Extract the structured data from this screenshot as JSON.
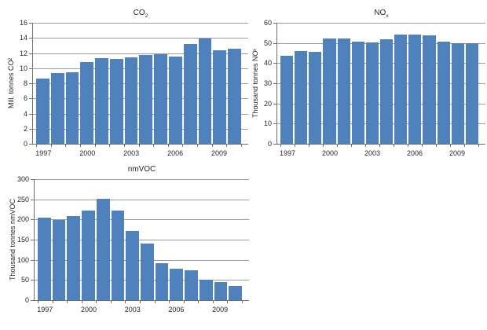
{
  "style": {
    "bar_color": "#4f81bd",
    "gridline_color": "#9c9c9c",
    "axis_color": "#6e6e6e",
    "text_color": "#262626",
    "background": "#ffffff"
  },
  "chart_data": [
    {
      "id": "co2",
      "type": "bar",
      "title_main": "CO",
      "title_sub": "2",
      "ylabel_main": "Mill. tonnes CO",
      "ylabel_sub": "2",
      "categories": [
        1997,
        1998,
        1999,
        2000,
        2001,
        2002,
        2003,
        2004,
        2005,
        2006,
        2007,
        2008,
        2009,
        2010
      ],
      "values": [
        8.6,
        9.4,
        9.5,
        10.8,
        11.3,
        11.2,
        11.4,
        11.7,
        11.8,
        11.5,
        13.2,
        13.9,
        12.4,
        12.6
      ],
      "ylim": [
        0,
        16
      ],
      "y_ticks": [
        0,
        2,
        4,
        6,
        8,
        10,
        12,
        14,
        16
      ],
      "x_tick_labels": [
        {
          "index": 0,
          "label": "1997"
        },
        {
          "index": 3,
          "label": "2000"
        },
        {
          "index": 6,
          "label": "2003"
        },
        {
          "index": 9,
          "label": "2006"
        },
        {
          "index": 12,
          "label": "2009"
        }
      ],
      "grid": true,
      "legend": false
    },
    {
      "id": "nox",
      "type": "bar",
      "title_main": "NO",
      "title_sub": "x",
      "ylabel_main": "Thousand tonnes NO",
      "ylabel_sub": "x",
      "categories": [
        1997,
        1998,
        1999,
        2000,
        2001,
        2002,
        2003,
        2004,
        2005,
        2006,
        2007,
        2008,
        2009,
        2010
      ],
      "values": [
        43.5,
        45.8,
        45.5,
        52.3,
        52.1,
        50.5,
        50.3,
        51.8,
        54.3,
        54.3,
        53.8,
        50.8,
        50.0,
        50.0
      ],
      "ylim": [
        0,
        60
      ],
      "y_ticks": [
        0,
        10,
        20,
        30,
        40,
        50,
        60
      ],
      "x_tick_labels": [
        {
          "index": 0,
          "label": "1997"
        },
        {
          "index": 3,
          "label": "2000"
        },
        {
          "index": 6,
          "label": "2003"
        },
        {
          "index": 9,
          "label": "2006"
        },
        {
          "index": 12,
          "label": "2009"
        }
      ],
      "grid": true,
      "legend": false
    },
    {
      "id": "nmvoc",
      "type": "bar",
      "title_main": "nmVOC",
      "title_sub": "",
      "ylabel_main": "Thousand tonnes nmVOC",
      "ylabel_sub": "",
      "categories": [
        1997,
        1998,
        1999,
        2000,
        2001,
        2002,
        2003,
        2004,
        2005,
        2006,
        2007,
        2008,
        2009,
        2010
      ],
      "values": [
        204,
        199,
        208,
        222,
        252,
        222,
        171,
        140,
        92,
        78,
        75,
        50,
        45,
        36
      ],
      "ylim": [
        0,
        300
      ],
      "y_ticks": [
        0,
        50,
        100,
        150,
        200,
        250,
        300
      ],
      "x_tick_labels": [
        {
          "index": 0,
          "label": "1997"
        },
        {
          "index": 3,
          "label": "2000"
        },
        {
          "index": 6,
          "label": "2003"
        },
        {
          "index": 9,
          "label": "2006"
        },
        {
          "index": 12,
          "label": "2009"
        }
      ],
      "grid": true,
      "legend": false
    }
  ]
}
